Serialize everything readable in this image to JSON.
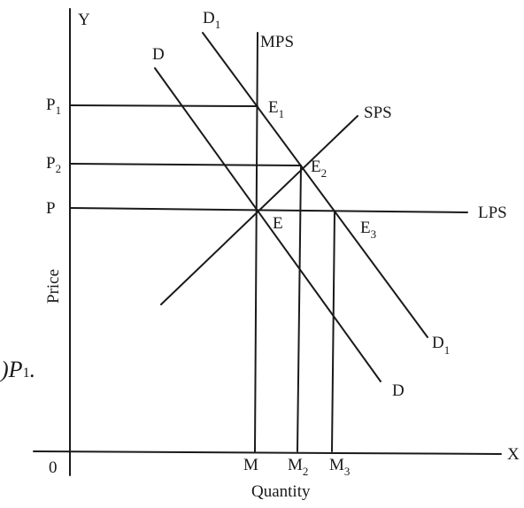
{
  "axes": {
    "y_label": "Y",
    "x_label": "X",
    "origin_label": "0",
    "y_title": "Price",
    "x_title": "Quantity"
  },
  "price_levels": {
    "p1": {
      "main": "P",
      "sub": "1"
    },
    "p2": {
      "main": "P",
      "sub": "2"
    },
    "p": {
      "main": "P"
    }
  },
  "quantities": {
    "m": {
      "main": "M"
    },
    "m2": {
      "main": "M",
      "sub": "2"
    },
    "m3": {
      "main": "M",
      "sub": "3"
    }
  },
  "curves": {
    "d": {
      "top": "D",
      "bottom": "D"
    },
    "d1": {
      "top_main": "D",
      "top_sub": "1",
      "bottom_main": "D",
      "bottom_sub": "1"
    },
    "mps": "MPS",
    "sps": "SPS",
    "lps": "LPS"
  },
  "equilibria": {
    "e": {
      "main": "E"
    },
    "e1": {
      "main": "E",
      "sub": "1"
    },
    "e2": {
      "main": "E",
      "sub": "2"
    },
    "e3": {
      "main": "E",
      "sub": "3"
    }
  },
  "margin_fragment": {
    "prefix": ")",
    "main": "P",
    "sub": "1",
    "suffix": "."
  }
}
